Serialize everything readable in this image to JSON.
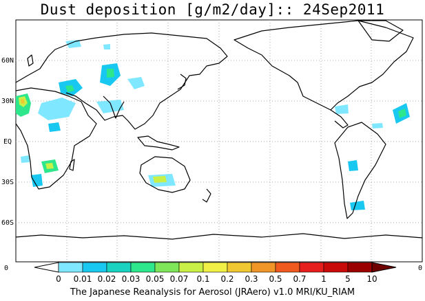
{
  "title": "Dust deposition [g/m2/day]:: 24Sep2011",
  "footer": "The Japanese Reanalysis for Aerosol (JRAero) v1.0 MRI/KU_RIAM",
  "lat_labels": [
    "60N",
    "30N",
    "EQ",
    "30S",
    "60S"
  ],
  "axis_corner_left": "0",
  "axis_corner_right": "0",
  "colorbar": {
    "labels": [
      "0",
      "0.01",
      "0.02",
      "0.03",
      "0.05",
      "0.07",
      "0.1",
      "0.2",
      "0.3",
      "0.5",
      "0.7",
      "1",
      "5",
      "10"
    ],
    "colors": [
      "#ffffff",
      "#7fe7ff",
      "#19c8f0",
      "#19d3c0",
      "#2ee68c",
      "#7fe65a",
      "#c8f046",
      "#f0f046",
      "#f0c832",
      "#f09628",
      "#f05a1e",
      "#e61e1e",
      "#c80a0a",
      "#9b0000",
      "#6e0000"
    ]
  },
  "colors": {
    "coast": "#000000",
    "grid": "#aaaaaa"
  }
}
